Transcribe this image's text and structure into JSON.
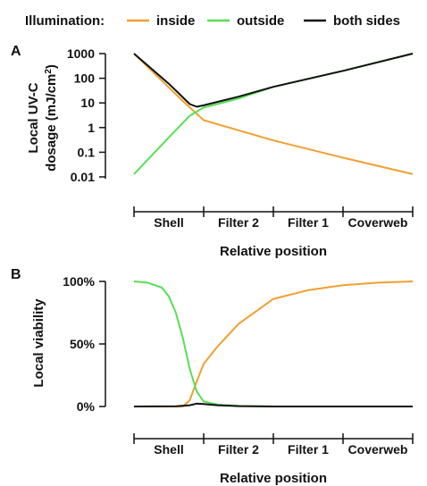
{
  "legend": {
    "title": "Illumination:",
    "entries": [
      {
        "label": "inside",
        "color": "#f0a030"
      },
      {
        "label": "outside",
        "color": "#55e055"
      },
      {
        "label": "both sides",
        "color": "#111111"
      }
    ]
  },
  "chart_data": [
    {
      "panel": "A",
      "type": "line",
      "ylabel_line1": "Local UV-C",
      "ylabel_line2_prefix": "dosage (mJ/cm",
      "ylabel_sup": "2",
      "ylabel_line2_suffix": ")",
      "yscale": "log",
      "ylim": [
        0.01,
        1000
      ],
      "yticks": [
        "1000",
        "100",
        "10",
        "1",
        "0.1",
        "0.01"
      ],
      "xlabel": "Relative position",
      "xlim": [
        0,
        4
      ],
      "xcategories": [
        "Shell",
        "Filter 2",
        "Filter 1",
        "Coverweb"
      ],
      "grid": false,
      "series": [
        {
          "name": "inside",
          "color": "#f0a030",
          "x": [
            0,
            0.7,
            1.0,
            2.0,
            3.0,
            4.0
          ],
          "y": [
            1000,
            12,
            2,
            0.3,
            0.06,
            0.013
          ]
        },
        {
          "name": "outside",
          "color": "#55e055",
          "x": [
            0,
            0.5,
            0.8,
            1.0,
            1.5,
            2.0,
            3.0,
            4.0
          ],
          "y": [
            0.013,
            0.4,
            3,
            6.5,
            15,
            45,
            200,
            1000
          ]
        },
        {
          "name": "both sides",
          "color": "#111111",
          "x": [
            0,
            0.5,
            0.8,
            0.9,
            1.0,
            1.5,
            2.0,
            3.0,
            4.0
          ],
          "y": [
            1000,
            60,
            9,
            7,
            8,
            18,
            45,
            200,
            1000
          ]
        }
      ]
    },
    {
      "panel": "B",
      "type": "line",
      "ylabel": "Local viability",
      "ylim": [
        0,
        100
      ],
      "yticks": [
        "100%",
        "50%",
        "0%"
      ],
      "xlabel": "Relative position",
      "xlim": [
        0,
        4
      ],
      "xcategories": [
        "Shell",
        "Filter 2",
        "Filter 1",
        "Coverweb"
      ],
      "grid": false,
      "series": [
        {
          "name": "inside",
          "color": "#f0a030",
          "x": [
            0,
            0.7,
            0.8,
            0.9,
            1.0,
            1.2,
            1.5,
            2.0,
            2.5,
            3.0,
            3.5,
            4.0
          ],
          "y": [
            0,
            0,
            5,
            20,
            34,
            48,
            66,
            86,
            93,
            97,
            99,
            100
          ]
        },
        {
          "name": "outside",
          "color": "#55e055",
          "x": [
            0,
            0.2,
            0.4,
            0.5,
            0.6,
            0.7,
            0.8,
            0.9,
            1.0,
            1.2,
            1.5,
            2.0,
            4.0
          ],
          "y": [
            100,
            99,
            95,
            88,
            75,
            55,
            30,
            12,
            4,
            1.5,
            0.5,
            0,
            0
          ]
        },
        {
          "name": "both sides",
          "color": "#111111",
          "x": [
            0,
            0.6,
            0.8,
            0.9,
            1.0,
            1.2,
            1.5,
            2.0,
            4.0
          ],
          "y": [
            0,
            0.2,
            1,
            2.3,
            2,
            1,
            0.3,
            0,
            0
          ]
        }
      ]
    }
  ]
}
